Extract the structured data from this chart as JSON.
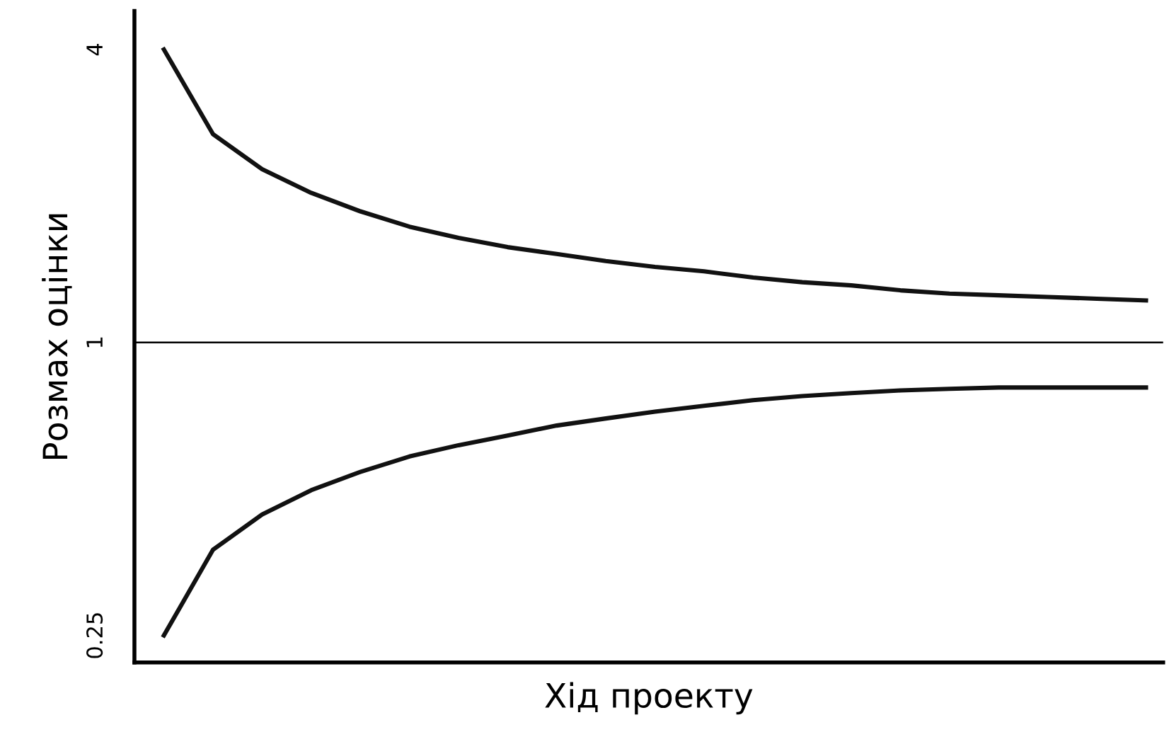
{
  "chart_data": {
    "type": "line",
    "xlabel": "Хід проекту",
    "ylabel": "Розмах оцінки",
    "categories": [
      null,
      null,
      null,
      null,
      null,
      null,
      null,
      null,
      null,
      null,
      null,
      null,
      null,
      null,
      null,
      null,
      null,
      null,
      null,
      null,
      null
    ],
    "series": [
      {
        "color": "#111111",
        "values": [
          4.0,
          2.68,
          2.27,
          2.03,
          1.86,
          1.73,
          1.64,
          1.57,
          1.52,
          1.47,
          1.43,
          1.4,
          1.36,
          1.33,
          1.31,
          1.28,
          1.26,
          1.25,
          1.24,
          1.23,
          1.22
        ]
      },
      {
        "color": "#111111",
        "values": [
          0.25,
          0.375,
          0.443,
          0.497,
          0.542,
          0.583,
          0.615,
          0.644,
          0.675,
          0.698,
          0.721,
          0.741,
          0.761,
          0.776,
          0.787,
          0.797,
          0.803,
          0.808,
          0.808,
          0.808,
          0.808
        ]
      }
    ],
    "log": true,
    "ylim": [
      0.22,
      4.8
    ],
    "yticks": [
      0.25,
      1,
      4
    ],
    "ref_lines": [
      {
        "axis": "y",
        "value": 1,
        "color": "#000000"
      }
    ],
    "tick_labels": "y",
    "grid": false,
    "legend": false,
    "marker": "none",
    "line_style": "solid"
  }
}
